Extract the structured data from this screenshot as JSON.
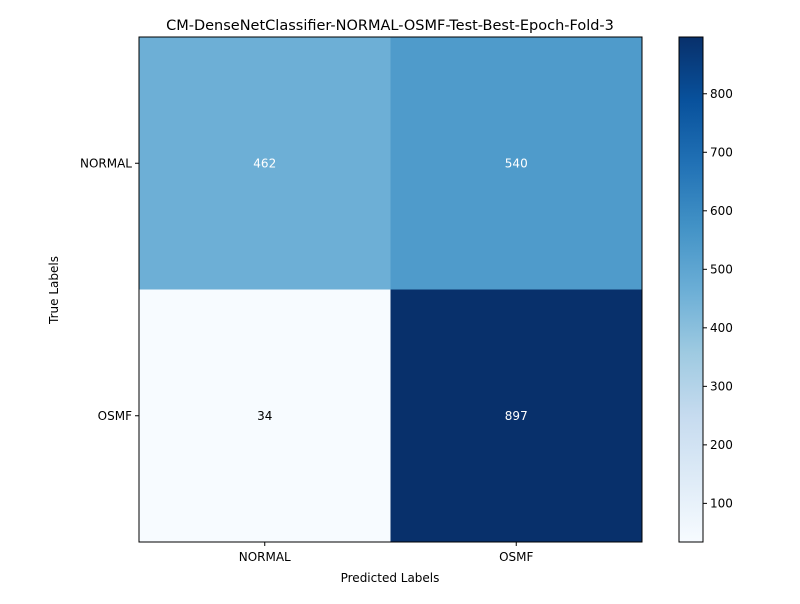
{
  "chart_data": {
    "type": "heatmap",
    "title": "CM-DenseNetClassifier-NORMAL-OSMF-Test-Best-Epoch-Fold-3",
    "xlabel": "Predicted Labels",
    "ylabel": "True Labels",
    "x_categories": [
      "NORMAL",
      "OSMF"
    ],
    "y_categories": [
      "NORMAL",
      "OSMF"
    ],
    "values": [
      [
        462,
        540
      ],
      [
        34,
        897
      ]
    ],
    "colormap": "Blues",
    "colorbar": {
      "min": 34,
      "max": 897,
      "ticks": [
        100,
        200,
        300,
        400,
        500,
        600,
        700,
        800
      ]
    },
    "annotation_colors": {
      "light_cell_text": "#000000",
      "dark_cell_text": "#ffffff"
    },
    "grid": false
  }
}
